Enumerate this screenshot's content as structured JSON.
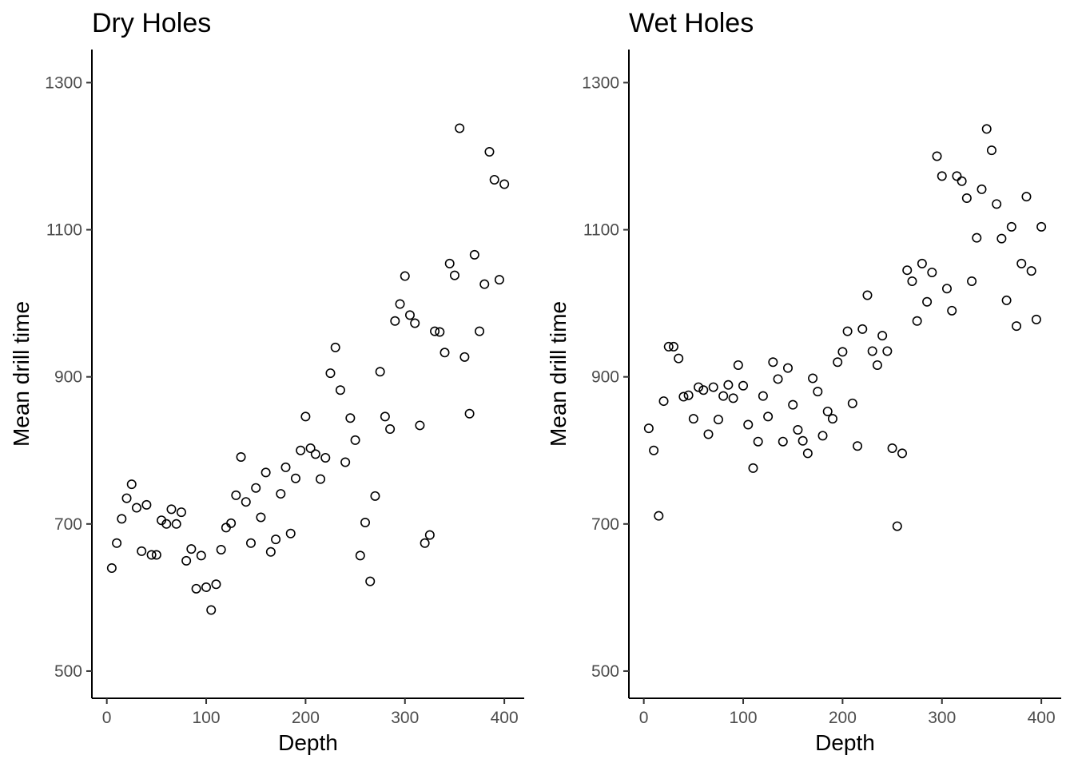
{
  "chart_data": [
    {
      "type": "scatter",
      "title": "Dry Holes",
      "xlabel": "Depth",
      "ylabel": "Mean drill time",
      "xlim": [
        -15,
        420
      ],
      "ylim": [
        463,
        1345
      ],
      "xticks": [
        "0",
        "100",
        "200",
        "300",
        "400"
      ],
      "yticks": [
        "500",
        "700",
        "900",
        "1100",
        "1300"
      ],
      "grid": false,
      "x": [
        5,
        10,
        15,
        20,
        25,
        30,
        35,
        40,
        45,
        50,
        55,
        60,
        65,
        70,
        75,
        80,
        85,
        90,
        95,
        100,
        105,
        110,
        115,
        120,
        125,
        130,
        135,
        140,
        145,
        150,
        155,
        160,
        165,
        170,
        175,
        180,
        185,
        190,
        195,
        200,
        205,
        210,
        215,
        220,
        225,
        230,
        235,
        240,
        245,
        250,
        255,
        260,
        265,
        270,
        275,
        280,
        285,
        290,
        295,
        300,
        305,
        310,
        315,
        320,
        325,
        330,
        335,
        340,
        345,
        350,
        355,
        360,
        365,
        370,
        375,
        380,
        385,
        390,
        395,
        400
      ],
      "y": [
        640,
        674,
        707,
        735,
        754,
        722,
        663,
        726,
        658,
        658,
        705,
        700,
        720,
        700,
        716,
        650,
        666,
        612,
        657,
        614,
        583,
        618,
        665,
        695,
        701,
        739,
        791,
        730,
        674,
        749,
        709,
        770,
        662,
        679,
        741,
        777,
        687,
        762,
        800,
        846,
        803,
        795,
        761,
        790,
        905,
        940,
        882,
        784,
        844,
        814,
        657,
        702,
        622,
        738,
        907,
        846,
        829,
        976,
        999,
        1037,
        984,
        973,
        834,
        674,
        685,
        962,
        961,
        933,
        1054,
        1038,
        1238,
        927,
        850,
        1066,
        962,
        1026,
        1206,
        1168,
        1032,
        1162
      ]
    },
    {
      "type": "scatter",
      "title": "Wet Holes",
      "xlabel": "Depth",
      "ylabel": "Mean drill time",
      "xlim": [
        -15,
        420
      ],
      "ylim": [
        463,
        1345
      ],
      "xticks": [
        "0",
        "100",
        "200",
        "300",
        "400"
      ],
      "yticks": [
        "500",
        "700",
        "900",
        "1100",
        "1300"
      ],
      "grid": false,
      "x": [
        5,
        10,
        15,
        20,
        25,
        30,
        35,
        40,
        45,
        50,
        55,
        60,
        65,
        70,
        75,
        80,
        85,
        90,
        95,
        100,
        105,
        110,
        115,
        120,
        125,
        130,
        135,
        140,
        145,
        150,
        155,
        160,
        165,
        170,
        175,
        180,
        185,
        190,
        195,
        200,
        205,
        210,
        215,
        220,
        225,
        230,
        235,
        240,
        245,
        250,
        255,
        260,
        265,
        270,
        275,
        280,
        285,
        290,
        295,
        300,
        305,
        310,
        315,
        320,
        325,
        330,
        335,
        340,
        345,
        350,
        355,
        360,
        365,
        370,
        375,
        380,
        385,
        390,
        395,
        400
      ],
      "y": [
        830,
        800,
        711,
        867,
        941,
        941,
        925,
        873,
        875,
        843,
        886,
        882,
        822,
        886,
        842,
        874,
        889,
        871,
        916,
        888,
        835,
        776,
        812,
        874,
        846,
        920,
        897,
        812,
        912,
        862,
        828,
        813,
        796,
        898,
        880,
        820,
        853,
        843,
        920,
        934,
        962,
        864,
        806,
        965,
        1011,
        935,
        916,
        956,
        935,
        803,
        697,
        796,
        1045,
        1030,
        976,
        1054,
        1002,
        1042,
        1200,
        1173,
        1020,
        990,
        1173,
        1166,
        1143,
        1030,
        1089,
        1155,
        1237,
        1208,
        1135,
        1088,
        1004,
        1104,
        969,
        1054,
        1145,
        1044,
        978,
        1104
      ]
    }
  ]
}
